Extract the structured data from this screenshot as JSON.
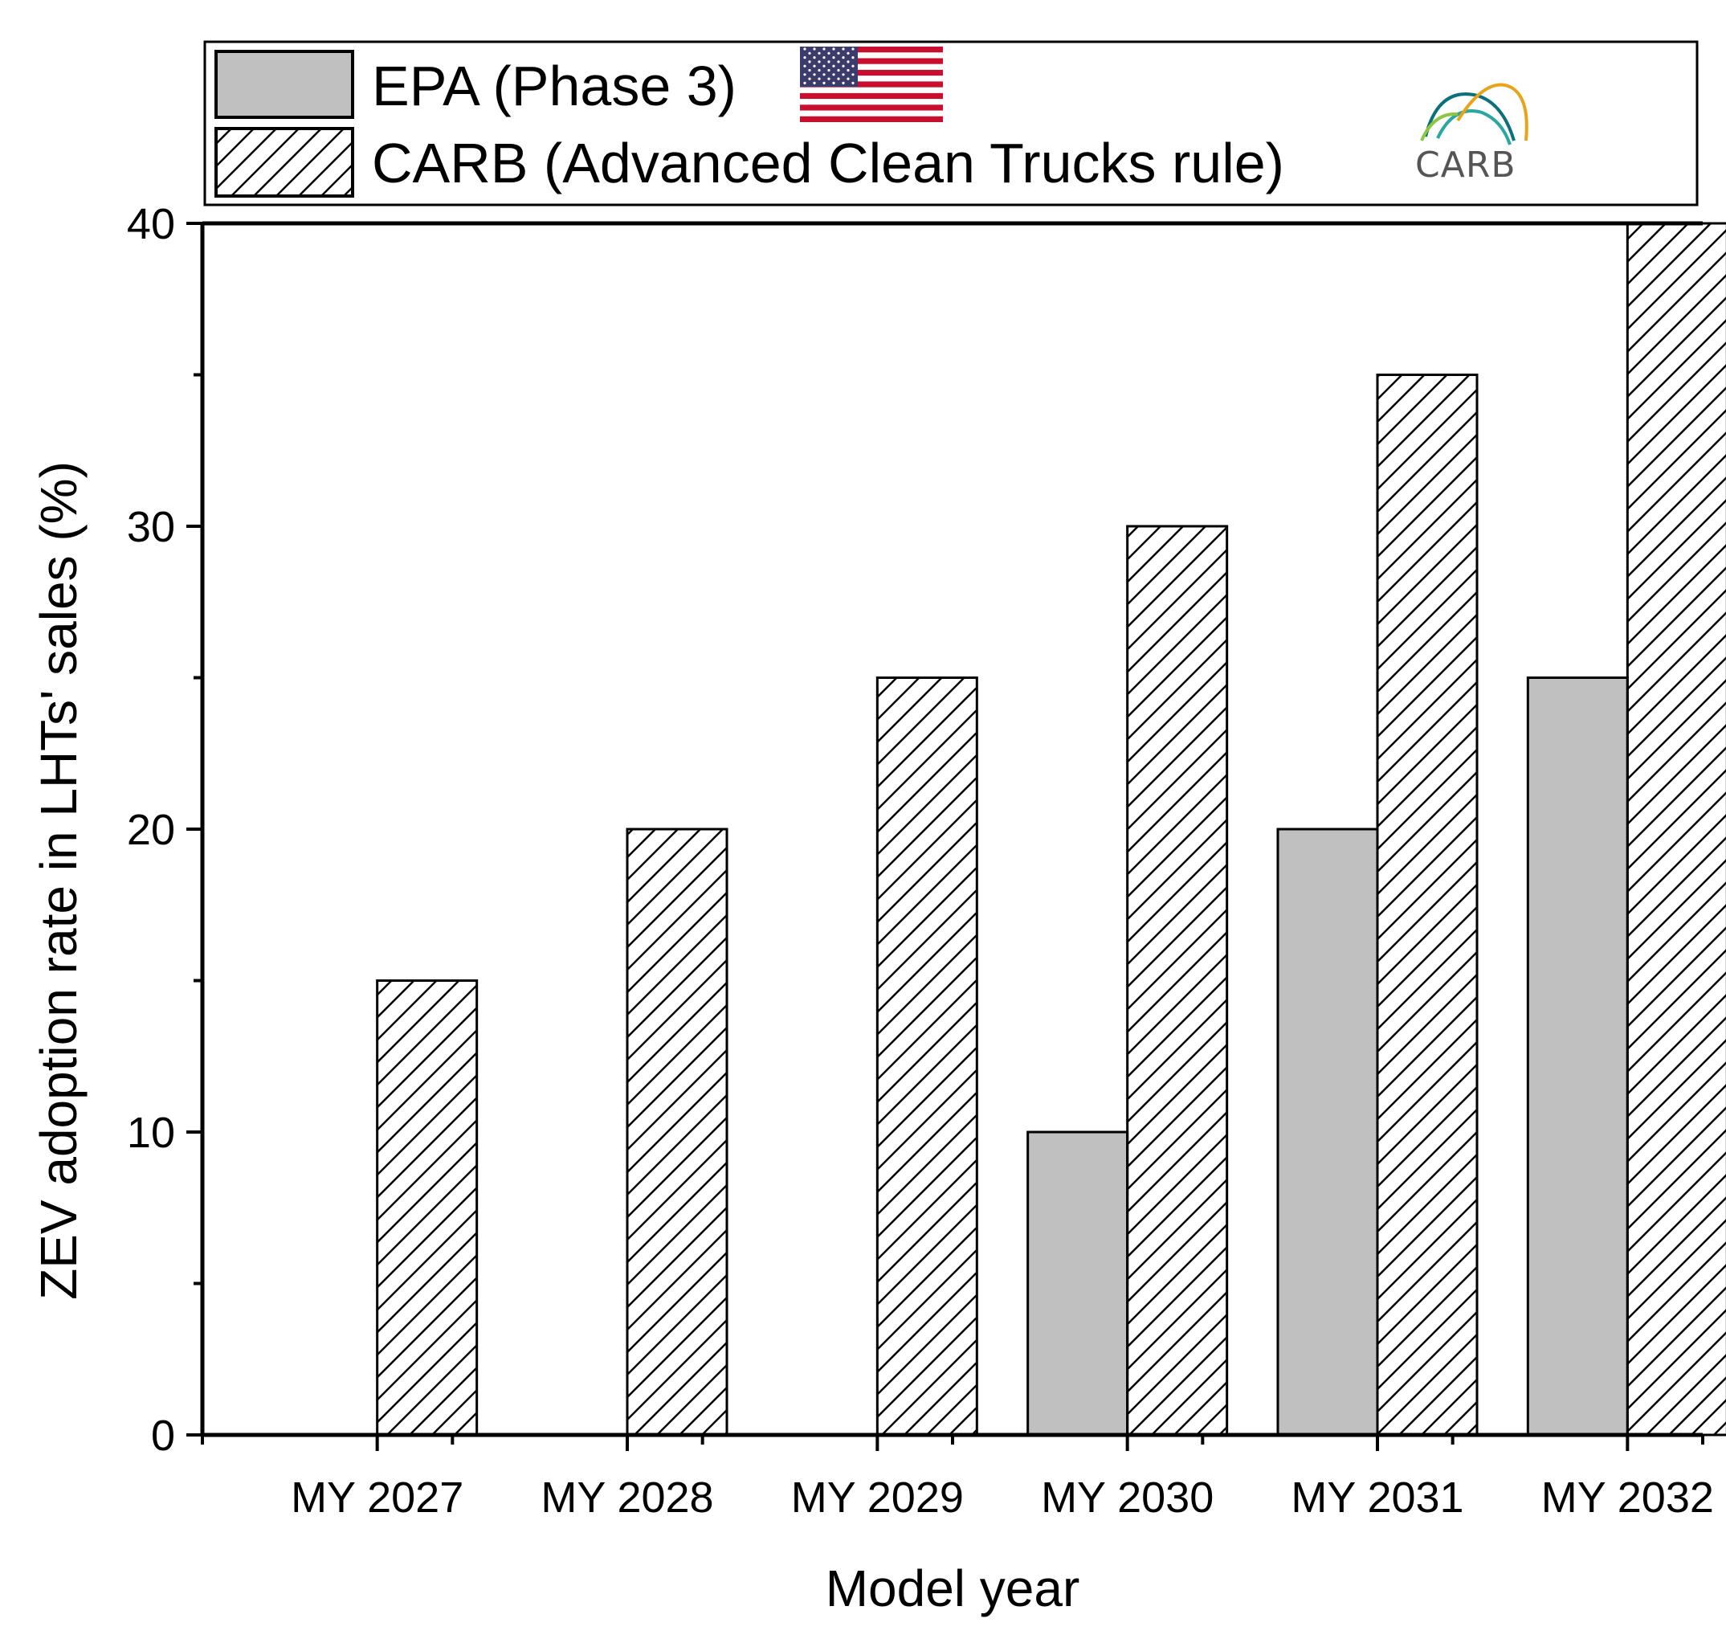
{
  "chart_data": {
    "type": "bar",
    "title": "",
    "xlabel": "Model year",
    "ylabel": "ZEV adoption rate in LHTs' sales (%)",
    "categories": [
      "MY 2027",
      "MY 2028",
      "MY 2029",
      "MY 2030",
      "MY 2031",
      "MY 2032"
    ],
    "series": [
      {
        "name": "EPA (Phase 3)",
        "values": [
          0,
          0,
          0,
          10,
          20,
          25
        ],
        "color": "#c0c0c0",
        "pattern": "solid"
      },
      {
        "name": "CARB (Advanced Clean Trucks rule)",
        "values": [
          15,
          20,
          25,
          30,
          35,
          40
        ],
        "color": "#ffffff",
        "pattern": "hatch"
      }
    ],
    "ylim": [
      0,
      40
    ],
    "yticks": [
      "0",
      "10",
      "20",
      "30",
      "40"
    ],
    "legend_position": "top",
    "grid": false
  },
  "legend": {
    "logo_text": "CARB",
    "flag_icon": "us-flag-icon",
    "logo_icon": "carb-logo-icon"
  }
}
